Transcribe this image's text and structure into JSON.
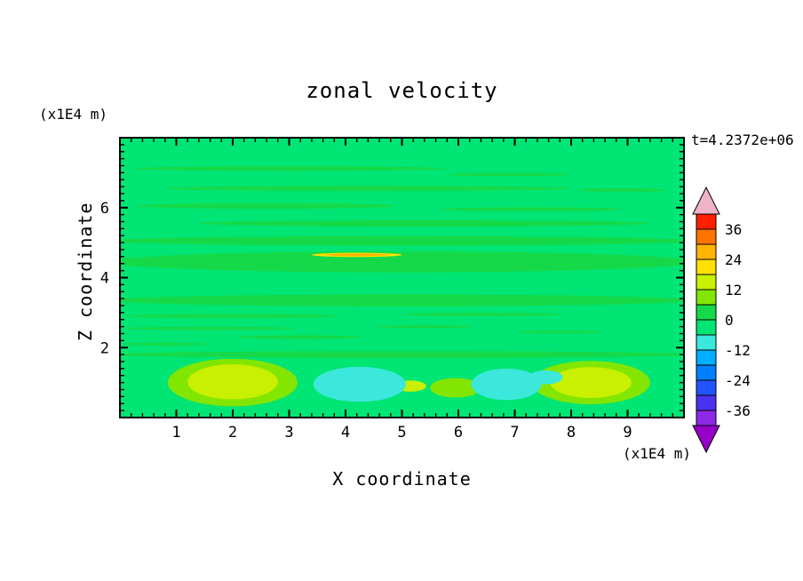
{
  "chart_data": {
    "type": "heatmap",
    "subtype": "filled-contour",
    "title": "zonal velocity",
    "timestamp": "t=4.2372e+06",
    "xlabel": "X coordinate",
    "ylabel": "Z coordinate",
    "x_units": "(x1E4 m)",
    "y_units": "(x1E4 m)",
    "xlim": [
      0,
      10
    ],
    "ylim": [
      0,
      8
    ],
    "x_major_ticks": [
      1,
      2,
      3,
      4,
      5,
      6,
      7,
      8,
      9
    ],
    "y_major_ticks": [
      2,
      4,
      6
    ],
    "x_minor_step": 0.2,
    "y_minor_step": 0.2,
    "grid": false,
    "legend_position": "right-colorbar",
    "colorbar": {
      "min": -42,
      "max": 42,
      "step": 6,
      "tick_values": [
        36,
        24,
        12,
        0,
        -12,
        -24,
        -36
      ],
      "tick_labels": [
        "36",
        "24",
        "12",
        "0",
        "-12",
        "-24",
        "-36"
      ],
      "segment_colors_bottom_to_top": [
        "#8C28E6",
        "#4B32F0",
        "#2353FF",
        "#0080FF",
        "#00AFFF",
        "#3CE8DC",
        "#00E573",
        "#16D94A",
        "#82E600",
        "#C8F000",
        "#FFE100",
        "#FFB400",
        "#FF7300",
        "#FF1E00"
      ],
      "under_arrow_color": "#9600C8",
      "over_arrow_color": "#F0B4C8"
    },
    "field": {
      "background_color": "#00E573",
      "background_value_band": "-6..0",
      "features": [
        {
          "kind": "streak",
          "level": "0..6",
          "x": 3.0,
          "z": 7.12,
          "rx": 2.8,
          "rz": 0.065,
          "color": "#16D94A"
        },
        {
          "kind": "streak",
          "level": "0..6",
          "x": 6.9,
          "z": 6.95,
          "rx": 1.1,
          "rz": 0.05,
          "color": "#16D94A"
        },
        {
          "kind": "streak",
          "level": "0..6",
          "x": 4.4,
          "z": 6.55,
          "rx": 3.6,
          "rz": 0.075,
          "color": "#16D94A"
        },
        {
          "kind": "streak",
          "level": "0..6",
          "x": 8.9,
          "z": 6.5,
          "rx": 0.8,
          "rz": 0.05,
          "color": "#16D94A"
        },
        {
          "kind": "streak",
          "level": "0..6",
          "x": 2.6,
          "z": 6.05,
          "rx": 2.3,
          "rz": 0.08,
          "color": "#16D94A"
        },
        {
          "kind": "streak",
          "level": "0..6",
          "x": 7.3,
          "z": 5.95,
          "rx": 1.6,
          "rz": 0.06,
          "color": "#16D94A"
        },
        {
          "kind": "streak",
          "level": "0..6",
          "x": 5.4,
          "z": 5.55,
          "rx": 4.0,
          "rz": 0.09,
          "color": "#16D94A"
        },
        {
          "kind": "streak",
          "level": "0..6",
          "x": 5.0,
          "z": 5.05,
          "rx": 5.2,
          "rz": 0.14,
          "color": "#16D94A"
        },
        {
          "kind": "streak",
          "level": "0..6",
          "x": 5.0,
          "z": 4.45,
          "rx": 5.2,
          "rz": 0.3,
          "color": "#16D94A"
        },
        {
          "kind": "streak",
          "level": "0..6",
          "x": 5.0,
          "z": 3.35,
          "rx": 5.2,
          "rz": 0.17,
          "color": "#16D94A"
        },
        {
          "kind": "streak",
          "level": "0..6",
          "x": 2.0,
          "z": 2.9,
          "rx": 1.9,
          "rz": 0.06,
          "color": "#16D94A"
        },
        {
          "kind": "streak",
          "level": "0..6",
          "x": 6.4,
          "z": 2.95,
          "rx": 1.4,
          "rz": 0.05,
          "color": "#16D94A"
        },
        {
          "kind": "streak",
          "level": "0..6",
          "x": 1.6,
          "z": 2.55,
          "rx": 1.5,
          "rz": 0.05,
          "color": "#16D94A"
        },
        {
          "kind": "streak",
          "level": "0..6",
          "x": 3.2,
          "z": 2.3,
          "rx": 1.1,
          "rz": 0.05,
          "color": "#16D94A"
        },
        {
          "kind": "streak",
          "level": "0..6",
          "x": 0.8,
          "z": 2.1,
          "rx": 0.75,
          "rz": 0.045,
          "color": "#16D94A"
        },
        {
          "kind": "streak",
          "level": "0..6",
          "x": 5.4,
          "z": 2.6,
          "rx": 0.85,
          "rz": 0.04,
          "color": "#16D94A"
        },
        {
          "kind": "streak",
          "level": "0..6",
          "x": 7.8,
          "z": 2.45,
          "rx": 0.75,
          "rz": 0.04,
          "color": "#16D94A"
        },
        {
          "kind": "streak",
          "level": "0..6",
          "x": 5.0,
          "z": 1.8,
          "rx": 5.2,
          "rz": 0.1,
          "color": "#16D94A"
        },
        {
          "kind": "halo",
          "level": "6..12",
          "x": 2.0,
          "z": 1.0,
          "rx": 1.15,
          "rz": 0.68,
          "color": "#82E600"
        },
        {
          "kind": "blob",
          "level": "12..18",
          "x": 2.0,
          "z": 1.02,
          "rx": 0.8,
          "rz": 0.5,
          "color": "#C8F000"
        },
        {
          "kind": "halo",
          "level": "6..12",
          "x": 8.35,
          "z": 1.0,
          "rx": 1.05,
          "rz": 0.62,
          "color": "#82E600"
        },
        {
          "kind": "blob",
          "level": "12..18",
          "x": 8.35,
          "z": 1.0,
          "rx": 0.72,
          "rz": 0.44,
          "color": "#C8F000"
        },
        {
          "kind": "halo",
          "level": "6..12",
          "x": 5.95,
          "z": 0.85,
          "rx": 0.45,
          "rz": 0.28,
          "color": "#82E600"
        },
        {
          "kind": "blob",
          "level": "12..18",
          "x": 5.15,
          "z": 0.9,
          "rx": 0.28,
          "rz": 0.16,
          "color": "#C8F000"
        },
        {
          "kind": "blob",
          "level": "-12..-6",
          "x": 4.25,
          "z": 0.95,
          "rx": 0.82,
          "rz": 0.5,
          "color": "#3CE8DC"
        },
        {
          "kind": "blob",
          "level": "-12..-6",
          "x": 6.85,
          "z": 0.95,
          "rx": 0.62,
          "rz": 0.45,
          "color": "#3CE8DC"
        },
        {
          "kind": "blob",
          "level": "-12..-6",
          "x": 7.55,
          "z": 1.15,
          "rx": 0.3,
          "rz": 0.2,
          "color": "#3CE8DC"
        },
        {
          "kind": "streak",
          "level": "18..24",
          "x": 4.2,
          "z": 4.65,
          "rx": 0.8,
          "rz": 0.06,
          "color": "#FFE100"
        },
        {
          "kind": "streak",
          "level": "24..30",
          "x": 4.2,
          "z": 4.65,
          "rx": 0.55,
          "rz": 0.035,
          "color": "#FFB400"
        }
      ]
    }
  }
}
